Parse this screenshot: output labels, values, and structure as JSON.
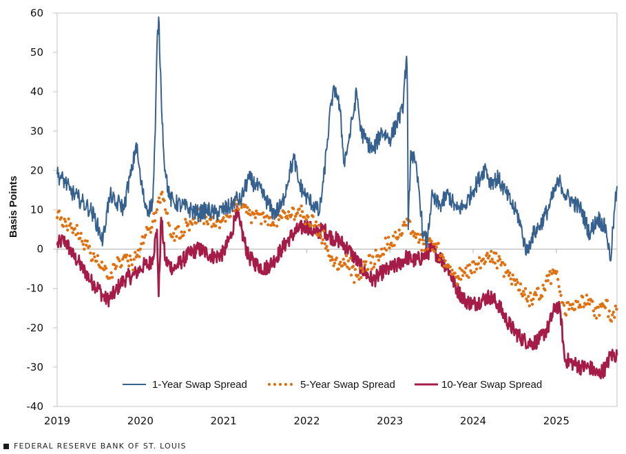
{
  "chart_data": {
    "type": "line",
    "title": "",
    "xlabel": "",
    "ylabel": "Basis Points",
    "xlim": [
      2019.0,
      2025.73
    ],
    "ylim": [
      -40,
      60
    ],
    "yticks": [
      60,
      50,
      40,
      30,
      20,
      10,
      0,
      -10,
      -20,
      -30,
      -40
    ],
    "ytick_labels": [
      "60",
      "50",
      "40",
      "30",
      "20",
      "10",
      "0",
      "-10",
      "-20",
      "-30",
      "-40"
    ],
    "xticks": [
      2019,
      2020,
      2021,
      2022,
      2023,
      2024,
      2025
    ],
    "xtick_labels": [
      "2019",
      "2020",
      "2021",
      "2022",
      "2023",
      "2024",
      "2025"
    ],
    "grid": false,
    "zero_line": true,
    "legend_position": "bottom-center",
    "series": [
      {
        "name": "1-Year Swap Spread",
        "style": "solid",
        "color": "#36618f",
        "x": [
          2019.0,
          2019.05,
          2019.1,
          2019.15,
          2019.2,
          2019.25,
          2019.3,
          2019.35,
          2019.4,
          2019.45,
          2019.5,
          2019.55,
          2019.6,
          2019.65,
          2019.7,
          2019.75,
          2019.8,
          2019.85,
          2019.9,
          2019.95,
          2020.0,
          2020.05,
          2020.1,
          2020.15,
          2020.18,
          2020.2,
          2020.22,
          2020.25,
          2020.28,
          2020.3,
          2020.35,
          2020.4,
          2020.5,
          2020.6,
          2020.7,
          2020.8,
          2020.9,
          2021.0,
          2021.1,
          2021.15,
          2021.2,
          2021.3,
          2021.4,
          2021.5,
          2021.6,
          2021.7,
          2021.8,
          2021.85,
          2021.9,
          2022.0,
          2022.1,
          2022.15,
          2022.2,
          2022.25,
          2022.3,
          2022.35,
          2022.4,
          2022.45,
          2022.5,
          2022.55,
          2022.6,
          2022.65,
          2022.7,
          2022.8,
          2022.9,
          2023.0,
          2023.1,
          2023.15,
          2023.2,
          2023.21,
          2023.22,
          2023.25,
          2023.3,
          2023.35,
          2023.4,
          2023.45,
          2023.5,
          2023.6,
          2023.7,
          2023.8,
          2023.9,
          2024.0,
          2024.1,
          2024.15,
          2024.2,
          2024.3,
          2024.4,
          2024.5,
          2024.55,
          2024.6,
          2024.65,
          2024.7,
          2024.8,
          2024.9,
          2025.0,
          2025.05,
          2025.1,
          2025.2,
          2025.3,
          2025.4,
          2025.5,
          2025.6,
          2025.65,
          2025.7,
          2025.73
        ],
        "values": [
          19,
          18,
          17,
          15,
          14,
          13,
          12,
          11,
          10,
          8,
          5,
          2,
          10,
          14,
          11,
          12,
          10,
          16,
          20,
          27,
          18,
          12,
          10,
          12,
          30,
          52,
          59,
          40,
          25,
          20,
          13,
          12,
          11,
          10,
          9,
          10,
          9,
          10,
          11,
          13,
          12,
          18,
          16,
          13,
          9,
          11,
          20,
          23,
          17,
          13,
          11,
          9,
          17,
          28,
          38,
          41,
          35,
          22,
          27,
          33,
          40,
          30,
          28,
          25,
          30,
          28,
          33,
          35,
          49,
          40,
          5,
          25,
          22,
          15,
          3,
          2,
          13,
          11,
          14,
          10,
          11,
          15,
          19,
          21,
          17,
          18,
          14,
          10,
          8,
          3,
          -1,
          3,
          6,
          10,
          16,
          17,
          14,
          12,
          10,
          4,
          8,
          5,
          -3,
          10,
          16
        ]
      },
      {
        "name": "5-Year Swap Spread",
        "style": "dotted",
        "color": "#e07010",
        "x": [
          2019.0,
          2019.05,
          2019.1,
          2019.15,
          2019.2,
          2019.25,
          2019.3,
          2019.35,
          2019.4,
          2019.45,
          2019.5,
          2019.55,
          2019.6,
          2019.65,
          2019.7,
          2019.75,
          2019.8,
          2019.85,
          2019.9,
          2019.95,
          2020.0,
          2020.05,
          2020.1,
          2020.15,
          2020.2,
          2020.25,
          2020.3,
          2020.35,
          2020.4,
          2020.5,
          2020.6,
          2020.7,
          2020.8,
          2020.9,
          2021.0,
          2021.1,
          2021.15,
          2021.2,
          2021.3,
          2021.4,
          2021.5,
          2021.6,
          2021.7,
          2021.8,
          2021.9,
          2022.0,
          2022.1,
          2022.2,
          2022.3,
          2022.4,
          2022.5,
          2022.6,
          2022.7,
          2022.8,
          2022.9,
          2023.0,
          2023.1,
          2023.2,
          2023.3,
          2023.4,
          2023.5,
          2023.6,
          2023.7,
          2023.8,
          2023.9,
          2024.0,
          2024.1,
          2024.2,
          2024.3,
          2024.4,
          2024.5,
          2024.6,
          2024.7,
          2024.8,
          2024.9,
          2025.0,
          2025.05,
          2025.1,
          2025.2,
          2025.3,
          2025.4,
          2025.5,
          2025.6,
          2025.65,
          2025.73
        ],
        "values": [
          8,
          8,
          7,
          6,
          5,
          4,
          2,
          1,
          -1,
          -2,
          -4,
          -5,
          -7,
          -6,
          -5,
          -3,
          -2,
          -3,
          -4,
          -2,
          0,
          3,
          5,
          7,
          10,
          14,
          10,
          6,
          4,
          5,
          7,
          9,
          7,
          6,
          8,
          10,
          12,
          11,
          9,
          8,
          7,
          7,
          8,
          9,
          10,
          8,
          6,
          3,
          -2,
          -5,
          -3,
          -8,
          -4,
          -3,
          0,
          2,
          3,
          6,
          4,
          1,
          2,
          -1,
          -4,
          -7,
          -6,
          -5,
          -3,
          -2,
          -3,
          -6,
          -8,
          -11,
          -13,
          -11,
          -8,
          -6,
          -13,
          -15,
          -14,
          -13,
          -14,
          -16,
          -13,
          -18,
          -14
        ]
      },
      {
        "name": "10-Year Swap Spread",
        "style": "solid-thick",
        "color": "#a51c48",
        "x": [
          2019.0,
          2019.05,
          2019.1,
          2019.15,
          2019.2,
          2019.25,
          2019.3,
          2019.35,
          2019.4,
          2019.45,
          2019.5,
          2019.55,
          2019.6,
          2019.65,
          2019.7,
          2019.75,
          2019.8,
          2019.85,
          2019.9,
          2019.95,
          2020.0,
          2020.05,
          2020.1,
          2020.15,
          2020.2,
          2020.22,
          2020.25,
          2020.3,
          2020.4,
          2020.5,
          2020.6,
          2020.7,
          2020.8,
          2020.9,
          2021.0,
          2021.1,
          2021.15,
          2021.2,
          2021.3,
          2021.4,
          2021.5,
          2021.6,
          2021.7,
          2021.8,
          2021.9,
          2022.0,
          2022.1,
          2022.2,
          2022.3,
          2022.4,
          2022.5,
          2022.6,
          2022.7,
          2022.8,
          2022.9,
          2023.0,
          2023.1,
          2023.2,
          2023.3,
          2023.4,
          2023.5,
          2023.6,
          2023.7,
          2023.8,
          2023.9,
          2024.0,
          2024.1,
          2024.2,
          2024.3,
          2024.4,
          2024.5,
          2024.6,
          2024.7,
          2024.8,
          2024.9,
          2025.0,
          2025.05,
          2025.1,
          2025.2,
          2025.3,
          2025.4,
          2025.5,
          2025.6,
          2025.65,
          2025.73
        ],
        "values": [
          1,
          2,
          2,
          0,
          -2,
          -3,
          -5,
          -6,
          -8,
          -9,
          -10,
          -12,
          -13,
          -12,
          -11,
          -9,
          -8,
          -7,
          -7,
          -6,
          -5,
          -4,
          -4,
          -2,
          5,
          -12,
          8,
          -3,
          -5,
          -3,
          -1,
          0,
          -1,
          -2,
          -1,
          4,
          10,
          6,
          -2,
          -4,
          -5,
          -3,
          0,
          3,
          5,
          6,
          4,
          5,
          3,
          2,
          0,
          -3,
          -6,
          -8,
          -6,
          -5,
          -4,
          -2,
          -3,
          -2,
          0,
          -2,
          -5,
          -10,
          -13,
          -14,
          -13,
          -12,
          -14,
          -18,
          -21,
          -23,
          -24,
          -23,
          -20,
          -14,
          -16,
          -28,
          -29,
          -30,
          -30,
          -32,
          -30,
          -27,
          -27
        ]
      }
    ]
  },
  "footer": {
    "source": "FEDERAL RESERVE BANK OF ST. LOUIS"
  },
  "colors": {
    "axis": "#d0d0d0",
    "zero_line": "#bdbdbd"
  }
}
